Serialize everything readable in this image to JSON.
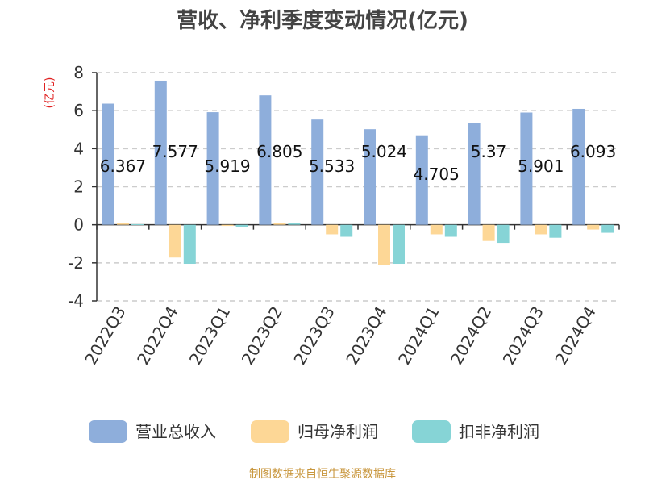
{
  "chart_data": {
    "type": "bar",
    "title": "营收、净利季度变动情况(亿元)",
    "ylabel": "(亿元)",
    "xlabel": "",
    "categories": [
      "2022Q3",
      "2022Q4",
      "2023Q1",
      "2023Q2",
      "2023Q3",
      "2023Q4",
      "2024Q1",
      "2024Q2",
      "2024Q3",
      "2024Q4"
    ],
    "series": [
      {
        "name": "营业总收入",
        "color": "#8eaedb",
        "values": [
          6.367,
          7.577,
          5.919,
          6.805,
          5.533,
          5.024,
          4.705,
          5.37,
          5.901,
          6.093
        ],
        "value_labels": [
          "6.367",
          "7.577",
          "5.919",
          "6.805",
          "5.533",
          "5.024",
          "4.705",
          "5.37",
          "5.901",
          "6.093"
        ]
      },
      {
        "name": "归母净利润",
        "color": "#fdd796",
        "values": [
          0.08,
          -1.72,
          -0.06,
          0.1,
          -0.5,
          -2.1,
          -0.5,
          -0.85,
          -0.5,
          -0.25
        ]
      },
      {
        "name": "扣非净利润",
        "color": "#86d4d6",
        "values": [
          0.03,
          -2.05,
          -0.1,
          0.07,
          -0.63,
          -2.05,
          -0.63,
          -0.95,
          -0.68,
          -0.42
        ]
      }
    ],
    "ylim": [
      -4,
      8
    ],
    "yticks": [
      "8",
      "6",
      "4",
      "2",
      "0",
      "-2",
      "-4"
    ],
    "grid": true,
    "legend_position": "bottom",
    "source": "制图数据来自恒生聚源数据库"
  }
}
